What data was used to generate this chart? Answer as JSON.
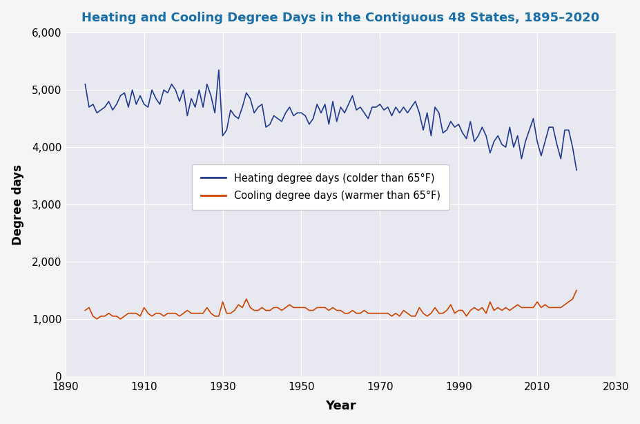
{
  "title": "Heating and Cooling Degree Days in the Contiguous 48 States, 1895–2020",
  "xlabel": "Year",
  "ylabel": "Degree days",
  "xlim": [
    1892,
    2030
  ],
  "ylim": [
    0,
    6000
  ],
  "yticks": [
    0,
    1000,
    2000,
    3000,
    4000,
    5000,
    6000
  ],
  "xticks": [
    1890,
    1910,
    1930,
    1950,
    1970,
    1990,
    2010,
    2030
  ],
  "fig_bg_color": "#f5f5f5",
  "plot_bg_color": "#e8e8f0",
  "title_color": "#1a6fa8",
  "heating_color": "#1f3a8f",
  "cooling_color": "#cc4400",
  "legend_label_heating": "Heating degree days (colder than 65°F)",
  "legend_label_cooling": "Cooling degree days (warmer than 65°F)",
  "heating_years": [
    1895,
    1896,
    1897,
    1898,
    1899,
    1900,
    1901,
    1902,
    1903,
    1904,
    1905,
    1906,
    1907,
    1908,
    1909,
    1910,
    1911,
    1912,
    1913,
    1914,
    1915,
    1916,
    1917,
    1918,
    1919,
    1920,
    1921,
    1922,
    1923,
    1924,
    1925,
    1926,
    1927,
    1928,
    1929,
    1930,
    1931,
    1932,
    1933,
    1934,
    1935,
    1936,
    1937,
    1938,
    1939,
    1940,
    1941,
    1942,
    1943,
    1944,
    1945,
    1946,
    1947,
    1948,
    1949,
    1950,
    1951,
    1952,
    1953,
    1954,
    1955,
    1956,
    1957,
    1958,
    1959,
    1960,
    1961,
    1962,
    1963,
    1964,
    1965,
    1966,
    1967,
    1968,
    1969,
    1970,
    1971,
    1972,
    1973,
    1974,
    1975,
    1976,
    1977,
    1978,
    1979,
    1980,
    1981,
    1982,
    1983,
    1984,
    1985,
    1986,
    1987,
    1988,
    1989,
    1990,
    1991,
    1992,
    1993,
    1994,
    1995,
    1996,
    1997,
    1998,
    1999,
    2000,
    2001,
    2002,
    2003,
    2004,
    2005,
    2006,
    2007,
    2008,
    2009,
    2010,
    2011,
    2012,
    2013,
    2014,
    2015,
    2016,
    2017,
    2018,
    2019,
    2020
  ],
  "heating_values": [
    5100,
    4700,
    4750,
    4600,
    4650,
    4700,
    4800,
    4650,
    4750,
    4900,
    4950,
    4700,
    5000,
    4750,
    4900,
    4750,
    4700,
    5000,
    4850,
    4750,
    5000,
    4950,
    5100,
    5000,
    4800,
    5000,
    4550,
    4850,
    4700,
    5000,
    4700,
    5100,
    4900,
    4600,
    5350,
    4200,
    4300,
    4650,
    4550,
    4500,
    4700,
    4950,
    4850,
    4600,
    4700,
    4750,
    4350,
    4400,
    4550,
    4500,
    4450,
    4600,
    4700,
    4550,
    4600,
    4600,
    4550,
    4400,
    4500,
    4750,
    4600,
    4750,
    4400,
    4800,
    4450,
    4700,
    4600,
    4750,
    4900,
    4650,
    4700,
    4600,
    4500,
    4700,
    4700,
    4750,
    4650,
    4700,
    4550,
    4700,
    4600,
    4700,
    4600,
    4700,
    4800,
    4600,
    4300,
    4600,
    4200,
    4700,
    4600,
    4250,
    4300,
    4450,
    4350,
    4400,
    4250,
    4150,
    4450,
    4100,
    4200,
    4350,
    4200,
    3900,
    4100,
    4200,
    4050,
    4000,
    4350,
    4000,
    4200,
    3800,
    4100,
    4300,
    4500,
    4100,
    3850,
    4100,
    4350,
    4350,
    4050,
    3800,
    4300,
    4300,
    4000,
    3600
  ],
  "cooling_years": [
    1895,
    1896,
    1897,
    1898,
    1899,
    1900,
    1901,
    1902,
    1903,
    1904,
    1905,
    1906,
    1907,
    1908,
    1909,
    1910,
    1911,
    1912,
    1913,
    1914,
    1915,
    1916,
    1917,
    1918,
    1919,
    1920,
    1921,
    1922,
    1923,
    1924,
    1925,
    1926,
    1927,
    1928,
    1929,
    1930,
    1931,
    1932,
    1933,
    1934,
    1935,
    1936,
    1937,
    1938,
    1939,
    1940,
    1941,
    1942,
    1943,
    1944,
    1945,
    1946,
    1947,
    1948,
    1949,
    1950,
    1951,
    1952,
    1953,
    1954,
    1955,
    1956,
    1957,
    1958,
    1959,
    1960,
    1961,
    1962,
    1963,
    1964,
    1965,
    1966,
    1967,
    1968,
    1969,
    1970,
    1971,
    1972,
    1973,
    1974,
    1975,
    1976,
    1977,
    1978,
    1979,
    1980,
    1981,
    1982,
    1983,
    1984,
    1985,
    1986,
    1987,
    1988,
    1989,
    1990,
    1991,
    1992,
    1993,
    1994,
    1995,
    1996,
    1997,
    1998,
    1999,
    2000,
    2001,
    2002,
    2003,
    2004,
    2005,
    2006,
    2007,
    2008,
    2009,
    2010,
    2011,
    2012,
    2013,
    2014,
    2015,
    2016,
    2017,
    2018,
    2019,
    2020
  ],
  "cooling_values": [
    1150,
    1200,
    1050,
    1000,
    1050,
    1050,
    1100,
    1050,
    1050,
    1000,
    1050,
    1100,
    1100,
    1100,
    1050,
    1200,
    1100,
    1050,
    1100,
    1100,
    1050,
    1100,
    1100,
    1100,
    1050,
    1100,
    1150,
    1100,
    1100,
    1100,
    1100,
    1200,
    1100,
    1050,
    1050,
    1300,
    1100,
    1100,
    1150,
    1250,
    1200,
    1350,
    1200,
    1150,
    1150,
    1200,
    1150,
    1150,
    1200,
    1200,
    1150,
    1200,
    1250,
    1200,
    1200,
    1200,
    1200,
    1150,
    1150,
    1200,
    1200,
    1200,
    1150,
    1200,
    1150,
    1150,
    1100,
    1100,
    1150,
    1100,
    1100,
    1150,
    1100,
    1100,
    1100,
    1100,
    1100,
    1100,
    1050,
    1100,
    1050,
    1150,
    1100,
    1050,
    1050,
    1200,
    1100,
    1050,
    1100,
    1200,
    1100,
    1100,
    1150,
    1250,
    1100,
    1150,
    1150,
    1050,
    1150,
    1200,
    1150,
    1200,
    1100,
    1300,
    1150,
    1200,
    1150,
    1200,
    1150,
    1200,
    1250,
    1200,
    1200,
    1200,
    1200,
    1300,
    1200,
    1250,
    1200,
    1200,
    1200,
    1200,
    1250,
    1300,
    1350,
    1500
  ]
}
